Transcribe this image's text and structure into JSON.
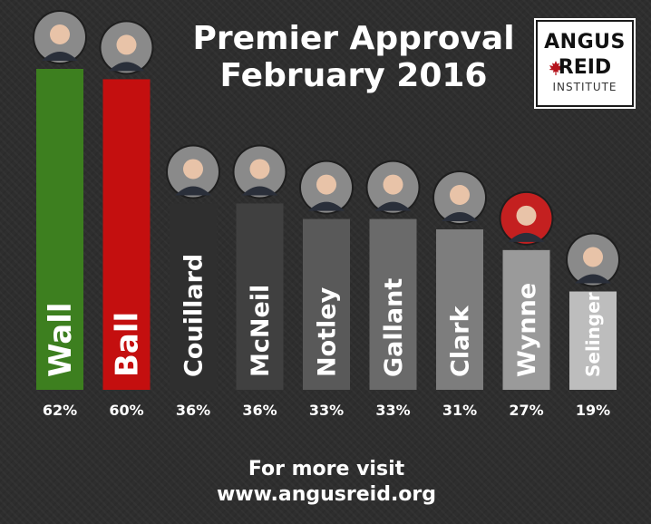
{
  "title": {
    "line1": "Premier Approval",
    "line2": "February 2016"
  },
  "logo": {
    "line1": "ANGUS",
    "line2": "REID",
    "line3": "INSTITUTE"
  },
  "footer": {
    "line1": "For more visit",
    "line2": "www.angusreid.org"
  },
  "colors": {
    "background": "#2e2e2e",
    "wall": "#3d7f1f",
    "ball": "#c40f0f",
    "couillard": "#2f2f2f",
    "mcneil": "#404040",
    "notley": "#595959",
    "gallant": "#6a6a6a",
    "clark": "#7d7d7d",
    "wynne": "#9a9a9a",
    "selinger": "#bdbdbd",
    "text": "#ffffff"
  },
  "chart_data": {
    "type": "bar",
    "title": "Premier Approval February 2016",
    "categories": [
      "Wall",
      "Ball",
      "Couillard",
      "McNeil",
      "Notley",
      "Gallant",
      "Clark",
      "Wynne",
      "Selinger"
    ],
    "values": [
      62,
      60,
      36,
      36,
      33,
      33,
      31,
      27,
      19
    ],
    "value_labels": [
      "62%",
      "60%",
      "36%",
      "36%",
      "33%",
      "33%",
      "31%",
      "27%",
      "19%"
    ],
    "unit": "%",
    "ylim": [
      0,
      62
    ],
    "grid": false,
    "legend": "none",
    "icons": [
      "wall-portrait",
      "ball-portrait",
      "couillard-portrait",
      "mcneil-portrait",
      "notley-portrait",
      "gallant-portrait",
      "clark-portrait",
      "wynne-portrait",
      "selinger-portrait"
    ]
  }
}
